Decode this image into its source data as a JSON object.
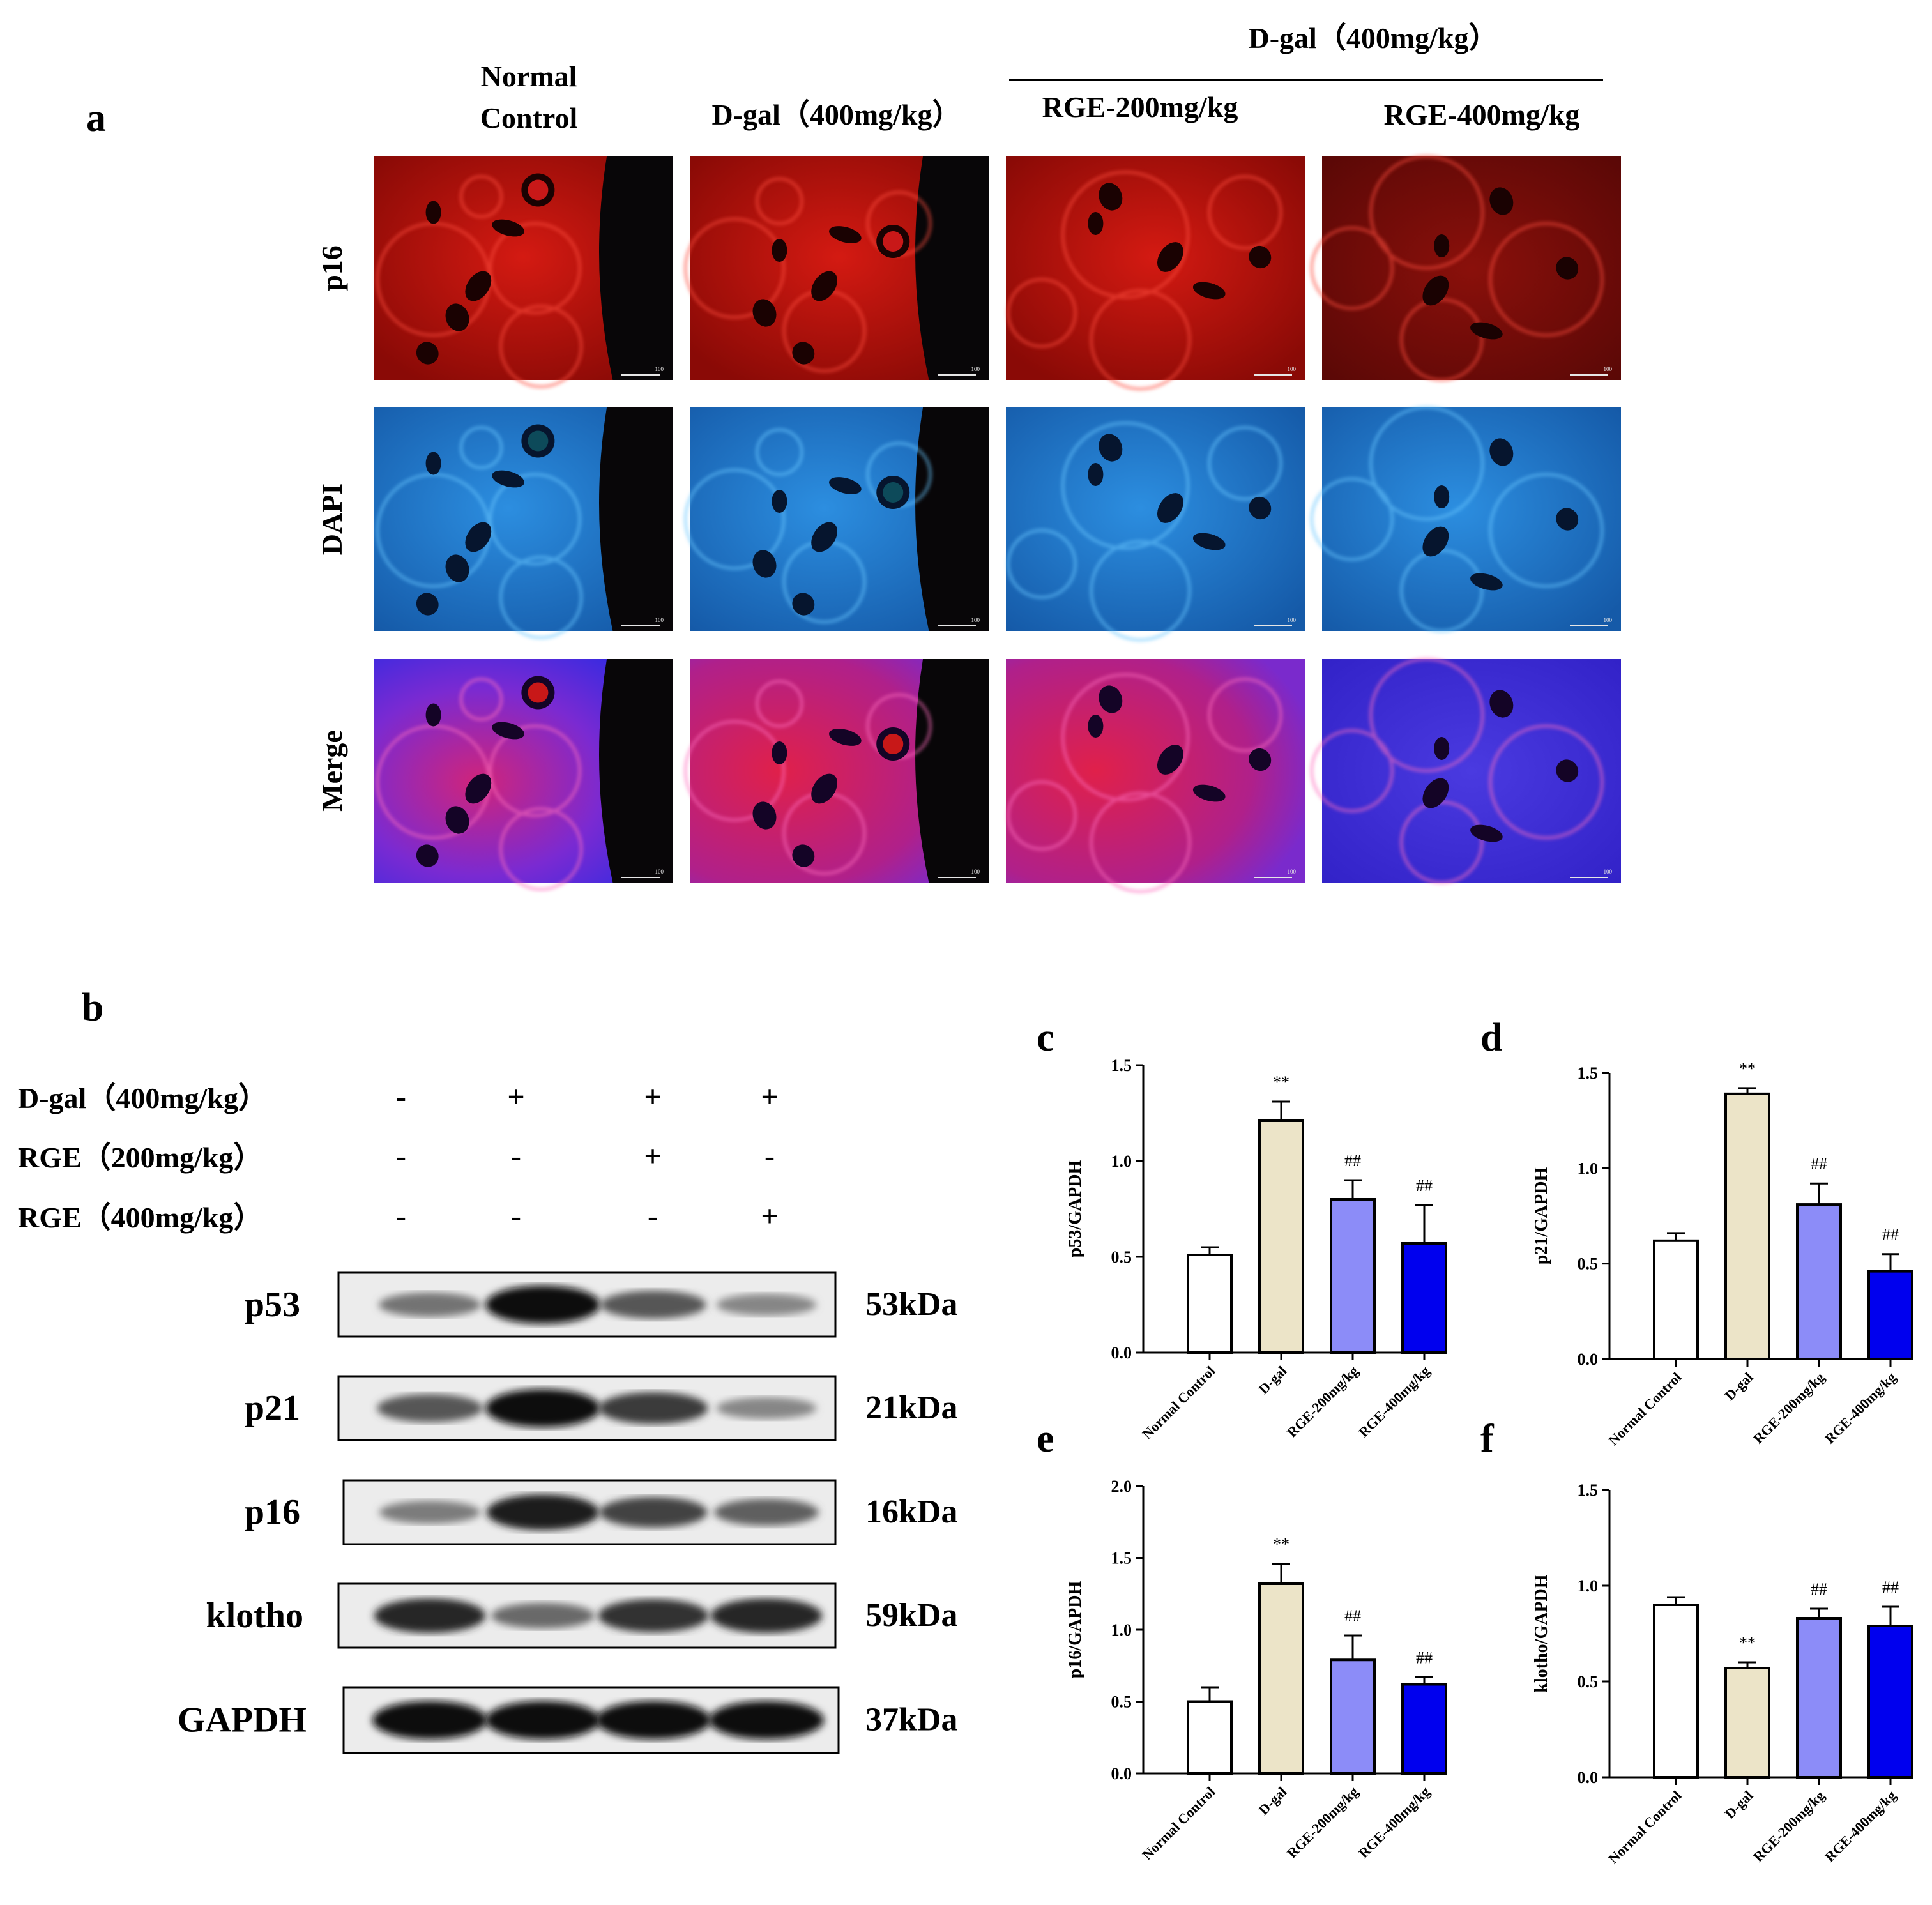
{
  "panel_a": {
    "label": "a",
    "group_header": "D-gal（400mg/kg）",
    "columns": [
      {
        "line1": "Normal",
        "line2": "Control"
      },
      {
        "line1": "D-gal（400mg/kg）",
        "line2": ""
      },
      {
        "line1": "RGE-200mg/kg",
        "line2": ""
      },
      {
        "line1": "RGE-400mg/kg",
        "line2": ""
      }
    ],
    "rows": [
      "p16",
      "DAPI",
      "Merge"
    ],
    "scale_bar_label": "100"
  },
  "panel_b": {
    "label": "b",
    "treatments": [
      {
        "label": "D-gal（400mg/kg）",
        "signs": [
          "-",
          "+",
          "+",
          "+"
        ]
      },
      {
        "label": "RGE（200mg/kg）",
        "signs": [
          "-",
          "-",
          "+",
          "-"
        ]
      },
      {
        "label": "RGE（400mg/kg）",
        "signs": [
          "-",
          "-",
          "-",
          "+"
        ]
      }
    ],
    "blots": [
      {
        "protein": "p53",
        "size": "53kDa",
        "intensity": [
          0.45,
          1.0,
          0.6,
          0.35
        ]
      },
      {
        "protein": "p21",
        "size": "21kDa",
        "intensity": [
          0.6,
          1.0,
          0.75,
          0.35
        ]
      },
      {
        "protein": "p16",
        "size": "16kDa",
        "intensity": [
          0.4,
          0.9,
          0.7,
          0.55
        ]
      },
      {
        "protein": "klotho",
        "size": "59kDa",
        "intensity": [
          0.85,
          0.5,
          0.8,
          0.85
        ]
      },
      {
        "protein": "GAPDH",
        "size": "37kDa",
        "intensity": [
          1.0,
          1.0,
          1.0,
          1.0
        ]
      }
    ]
  },
  "chart_data": [
    {
      "label": "c",
      "type": "bar",
      "ylabel": "p53/GAPDH",
      "categories": [
        "Normal Control",
        "D-gal",
        "RGE-200mg/kg",
        "RGE-400mg/kg"
      ],
      "values": [
        0.51,
        1.21,
        0.8,
        0.57
      ],
      "errors": [
        0.04,
        0.1,
        0.1,
        0.2
      ],
      "ylim": [
        0,
        1.5
      ],
      "yticks": [
        "0.0",
        "0.5",
        "1.0",
        "1.5"
      ],
      "annotations": [
        "",
        "**",
        "##",
        "##"
      ],
      "colors": [
        "#ffffff",
        "#ece4c8",
        "#8c8cf8",
        "#0000ee"
      ]
    },
    {
      "label": "d",
      "type": "bar",
      "ylabel": "p21/GAPDH",
      "categories": [
        "Normal Control",
        "D-gal",
        "RGE-200mg/kg",
        "RGE-400mg/kg"
      ],
      "values": [
        0.62,
        1.39,
        0.81,
        0.46
      ],
      "errors": [
        0.04,
        0.03,
        0.11,
        0.09
      ],
      "ylim": [
        0,
        1.5
      ],
      "yticks": [
        "0.0",
        "0.5",
        "1.0",
        "1.5"
      ],
      "annotations": [
        "",
        "**",
        "##",
        "##"
      ],
      "colors": [
        "#ffffff",
        "#ece4c8",
        "#8c8cf8",
        "#0000ee"
      ]
    },
    {
      "label": "e",
      "type": "bar",
      "ylabel": "p16/GAPDH",
      "categories": [
        "Normal Control",
        "D-gal",
        "RGE-200mg/kg",
        "RGE-400mg/kg"
      ],
      "values": [
        0.5,
        1.32,
        0.79,
        0.62
      ],
      "errors": [
        0.1,
        0.14,
        0.17,
        0.05
      ],
      "ylim": [
        0,
        2.0
      ],
      "yticks": [
        "0.0",
        "0.5",
        "1.0",
        "1.5",
        "2.0"
      ],
      "annotations": [
        "",
        "**",
        "##",
        "##"
      ],
      "colors": [
        "#ffffff",
        "#ece4c8",
        "#8c8cf8",
        "#0000ee"
      ]
    },
    {
      "label": "f",
      "type": "bar",
      "ylabel": "klotho/GAPDH",
      "categories": [
        "Normal Control",
        "D-gal",
        "RGE-200mg/kg",
        "RGE-400mg/kg"
      ],
      "values": [
        0.9,
        0.57,
        0.83,
        0.79
      ],
      "errors": [
        0.04,
        0.03,
        0.05,
        0.1
      ],
      "ylim": [
        0,
        1.5
      ],
      "yticks": [
        "0.0",
        "0.5",
        "1.0",
        "1.5"
      ],
      "annotations": [
        "",
        "**",
        "##",
        "##"
      ],
      "colors": [
        "#ffffff",
        "#ece4c8",
        "#8c8cf8",
        "#0000ee"
      ]
    }
  ]
}
